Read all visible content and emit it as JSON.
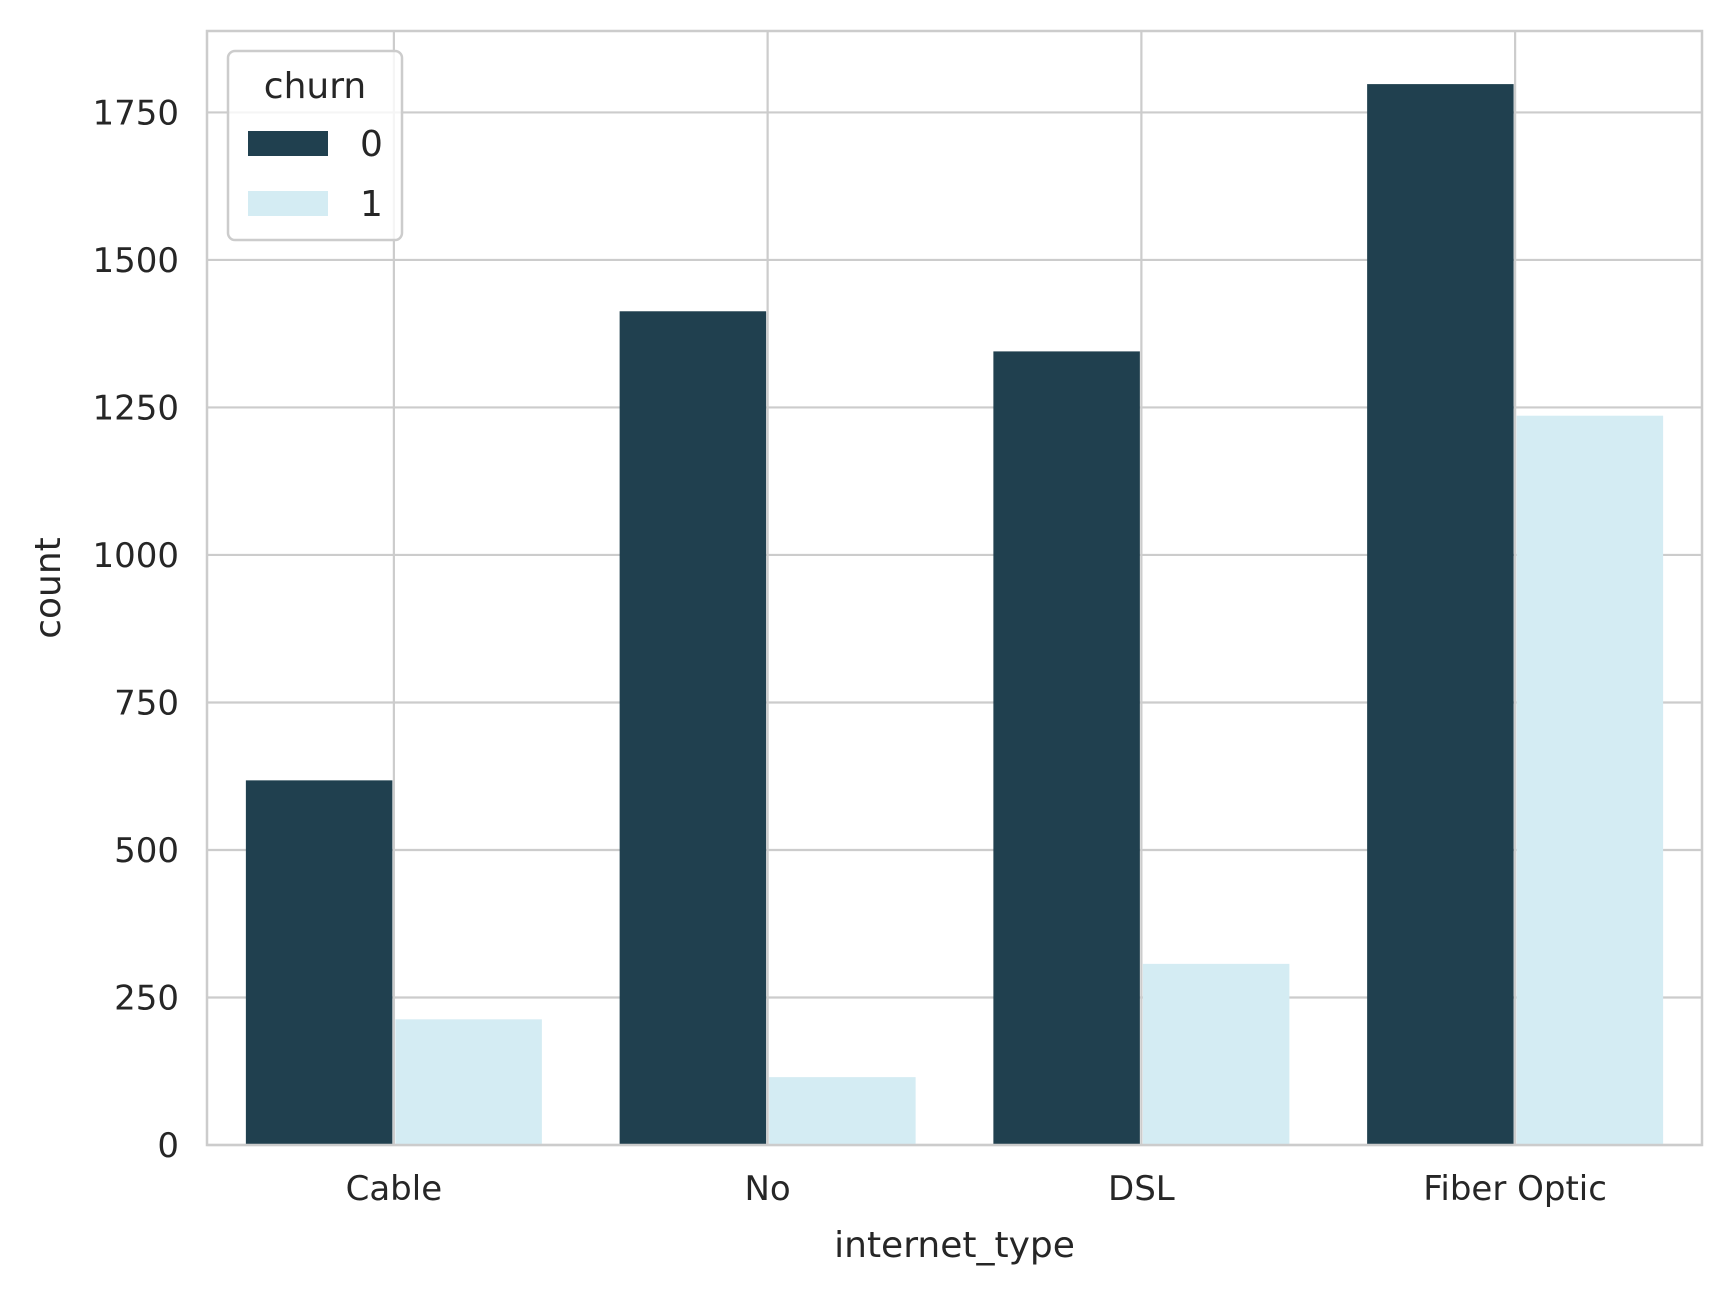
{
  "chart_data": {
    "type": "bar",
    "title": "",
    "xlabel": "internet_type",
    "ylabel": "count",
    "categories": [
      "Cable",
      "No",
      "DSL",
      "Fiber Optic"
    ],
    "series": [
      {
        "name": "0",
        "values": [
          618,
          1413,
          1345,
          1798
        ],
        "color": "#20404f"
      },
      {
        "name": "1",
        "values": [
          213,
          115,
          307,
          1236
        ],
        "color": "#d4ecf3"
      }
    ],
    "ylim": [
      0,
      1888
    ],
    "yticks": [
      0,
      250,
      500,
      750,
      1000,
      1250,
      1500,
      1750
    ],
    "grid": true,
    "legend": {
      "title": "churn",
      "position": "top-left"
    },
    "colors": {
      "grid": "#cccccc",
      "spine": "#cccccc",
      "text": "#262626"
    }
  }
}
